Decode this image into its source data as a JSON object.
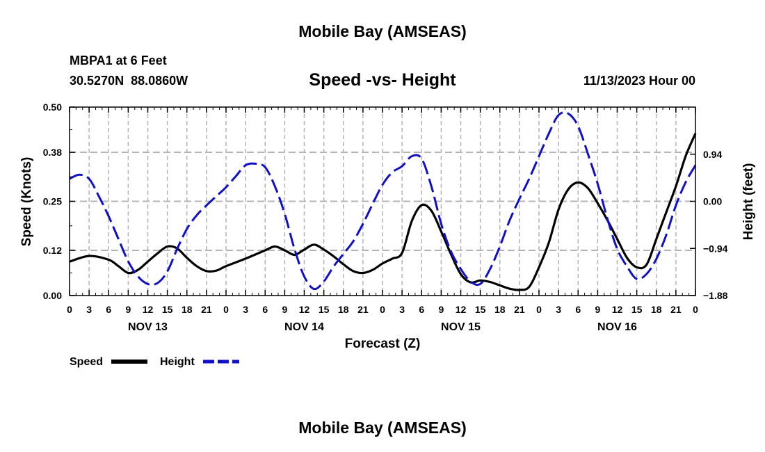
{
  "page": {
    "title_top": "Mobile Bay (AMSEAS)",
    "title_bottom": "Mobile Bay (AMSEAS)"
  },
  "station": {
    "name": "MBPA1 at 6 Feet",
    "coords": "30.5270N  88.0860W",
    "date": "11/13/2023 Hour 00"
  },
  "legend": {
    "speed_label": "Speed",
    "height_label": "Height"
  },
  "colors": {
    "speed": "#000000",
    "height": "#1010c8",
    "grid": "#b4b4b4"
  },
  "chart_data": {
    "type": "line",
    "title": "Speed -vs- Height",
    "xlabel": "Forecast (Z)",
    "ylabel": "Speed (Knots)",
    "y2label": "Height (feet)",
    "xlim": [
      0,
      96
    ],
    "ylim": [
      0,
      0.5
    ],
    "y2lim": [
      -1.88,
      1.88
    ],
    "y_ticks": [
      0.0,
      0.12,
      0.25,
      0.38,
      0.5
    ],
    "y_tick_labels": [
      "0.00",
      "0.12",
      "0.25",
      "0.38",
      "0.50"
    ],
    "y2_ticks": [
      -1.88,
      -0.94,
      0.0,
      0.94
    ],
    "y2_tick_labels": [
      "−1.88",
      "−0.94",
      "0.00",
      "0.94"
    ],
    "x_ticks": [
      0,
      3,
      6,
      9,
      12,
      15,
      18,
      21,
      24,
      27,
      30,
      33,
      36,
      39,
      42,
      45,
      48,
      51,
      54,
      57,
      60,
      63,
      66,
      69,
      72,
      75,
      78,
      81,
      84,
      87,
      90,
      93,
      96
    ],
    "x_tick_labels": [
      "0",
      "3",
      "6",
      "9",
      "12",
      "15",
      "18",
      "21",
      "0",
      "3",
      "6",
      "9",
      "12",
      "15",
      "18",
      "21",
      "0",
      "3",
      "6",
      "9",
      "12",
      "15",
      "18",
      "21",
      "0",
      "3",
      "6",
      "9",
      "12",
      "15",
      "18",
      "21",
      "0"
    ],
    "day_labels": [
      {
        "hour": 12,
        "label": "NOV 13"
      },
      {
        "hour": 36,
        "label": "NOV 14"
      },
      {
        "hour": 60,
        "label": "NOV 15"
      },
      {
        "hour": 84,
        "label": "NOV 16"
      }
    ],
    "grid": true,
    "series": [
      {
        "name": "Speed",
        "axis": "left",
        "style": "solid",
        "x": [
          0,
          3,
          6,
          7.5,
          9,
          10.5,
          12,
          13.5,
          15,
          16.5,
          18,
          19.5,
          21,
          22.5,
          24,
          27,
          30,
          31.5,
          33,
          34.5,
          36,
          37.5,
          39,
          40.5,
          42,
          43.5,
          45,
          46.5,
          48,
          49.5,
          51,
          52.5,
          54,
          55.5,
          57,
          58.5,
          60,
          61.5,
          63,
          64.5,
          66,
          67.5,
          69,
          70.5,
          72,
          73.5,
          75,
          76.5,
          78,
          79.5,
          81,
          82.5,
          84,
          85.5,
          87,
          88.5,
          90,
          91.5,
          93,
          94.5,
          96
        ],
        "values": [
          0.09,
          0.105,
          0.095,
          0.078,
          0.06,
          0.068,
          0.09,
          0.112,
          0.13,
          0.125,
          0.1,
          0.078,
          0.065,
          0.066,
          0.078,
          0.098,
          0.12,
          0.13,
          0.12,
          0.108,
          0.122,
          0.135,
          0.122,
          0.104,
          0.083,
          0.065,
          0.06,
          0.068,
          0.085,
          0.098,
          0.113,
          0.198,
          0.24,
          0.225,
          0.17,
          0.11,
          0.057,
          0.035,
          0.04,
          0.036,
          0.027,
          0.018,
          0.015,
          0.023,
          0.075,
          0.14,
          0.228,
          0.282,
          0.3,
          0.285,
          0.245,
          0.2,
          0.15,
          0.1,
          0.075,
          0.082,
          0.15,
          0.22,
          0.29,
          0.37,
          0.43
        ]
      },
      {
        "name": "Height",
        "axis": "right",
        "style": "dashed",
        "x": [
          0,
          1.5,
          3,
          4.5,
          6,
          7.5,
          9,
          10.5,
          12,
          13.5,
          15,
          16.5,
          18,
          19.5,
          21,
          22.5,
          24,
          25.5,
          27,
          28.5,
          30,
          31.5,
          33,
          34.5,
          36,
          37.5,
          39,
          40.5,
          42,
          43.5,
          45,
          46.5,
          48,
          49.5,
          51,
          52.5,
          54,
          55.5,
          57,
          58.5,
          60,
          61.5,
          63,
          64.5,
          66,
          67.5,
          69,
          70.5,
          72,
          73.5,
          75,
          76.5,
          78,
          79.5,
          81,
          82.5,
          84,
          85.5,
          87,
          88.5,
          90,
          91.5,
          93,
          94.5,
          96
        ],
        "values": [
          0.45,
          0.53,
          0.45,
          0.1,
          -0.3,
          -0.75,
          -1.2,
          -1.5,
          -1.65,
          -1.63,
          -1.4,
          -0.95,
          -0.55,
          -0.28,
          -0.08,
          0.1,
          0.28,
          0.5,
          0.72,
          0.75,
          0.68,
          0.3,
          -0.25,
          -0.95,
          -1.5,
          -1.75,
          -1.6,
          -1.3,
          -1.05,
          -0.8,
          -0.45,
          -0.05,
          0.33,
          0.58,
          0.7,
          0.9,
          0.85,
          0.3,
          -0.45,
          -1.0,
          -1.35,
          -1.6,
          -1.65,
          -1.35,
          -0.9,
          -0.38,
          0.05,
          0.45,
          0.9,
          1.35,
          1.72,
          1.75,
          1.5,
          0.95,
          0.35,
          -0.35,
          -0.95,
          -1.3,
          -1.55,
          -1.45,
          -1.15,
          -0.68,
          -0.08,
          0.38,
          0.72
        ]
      }
    ]
  }
}
